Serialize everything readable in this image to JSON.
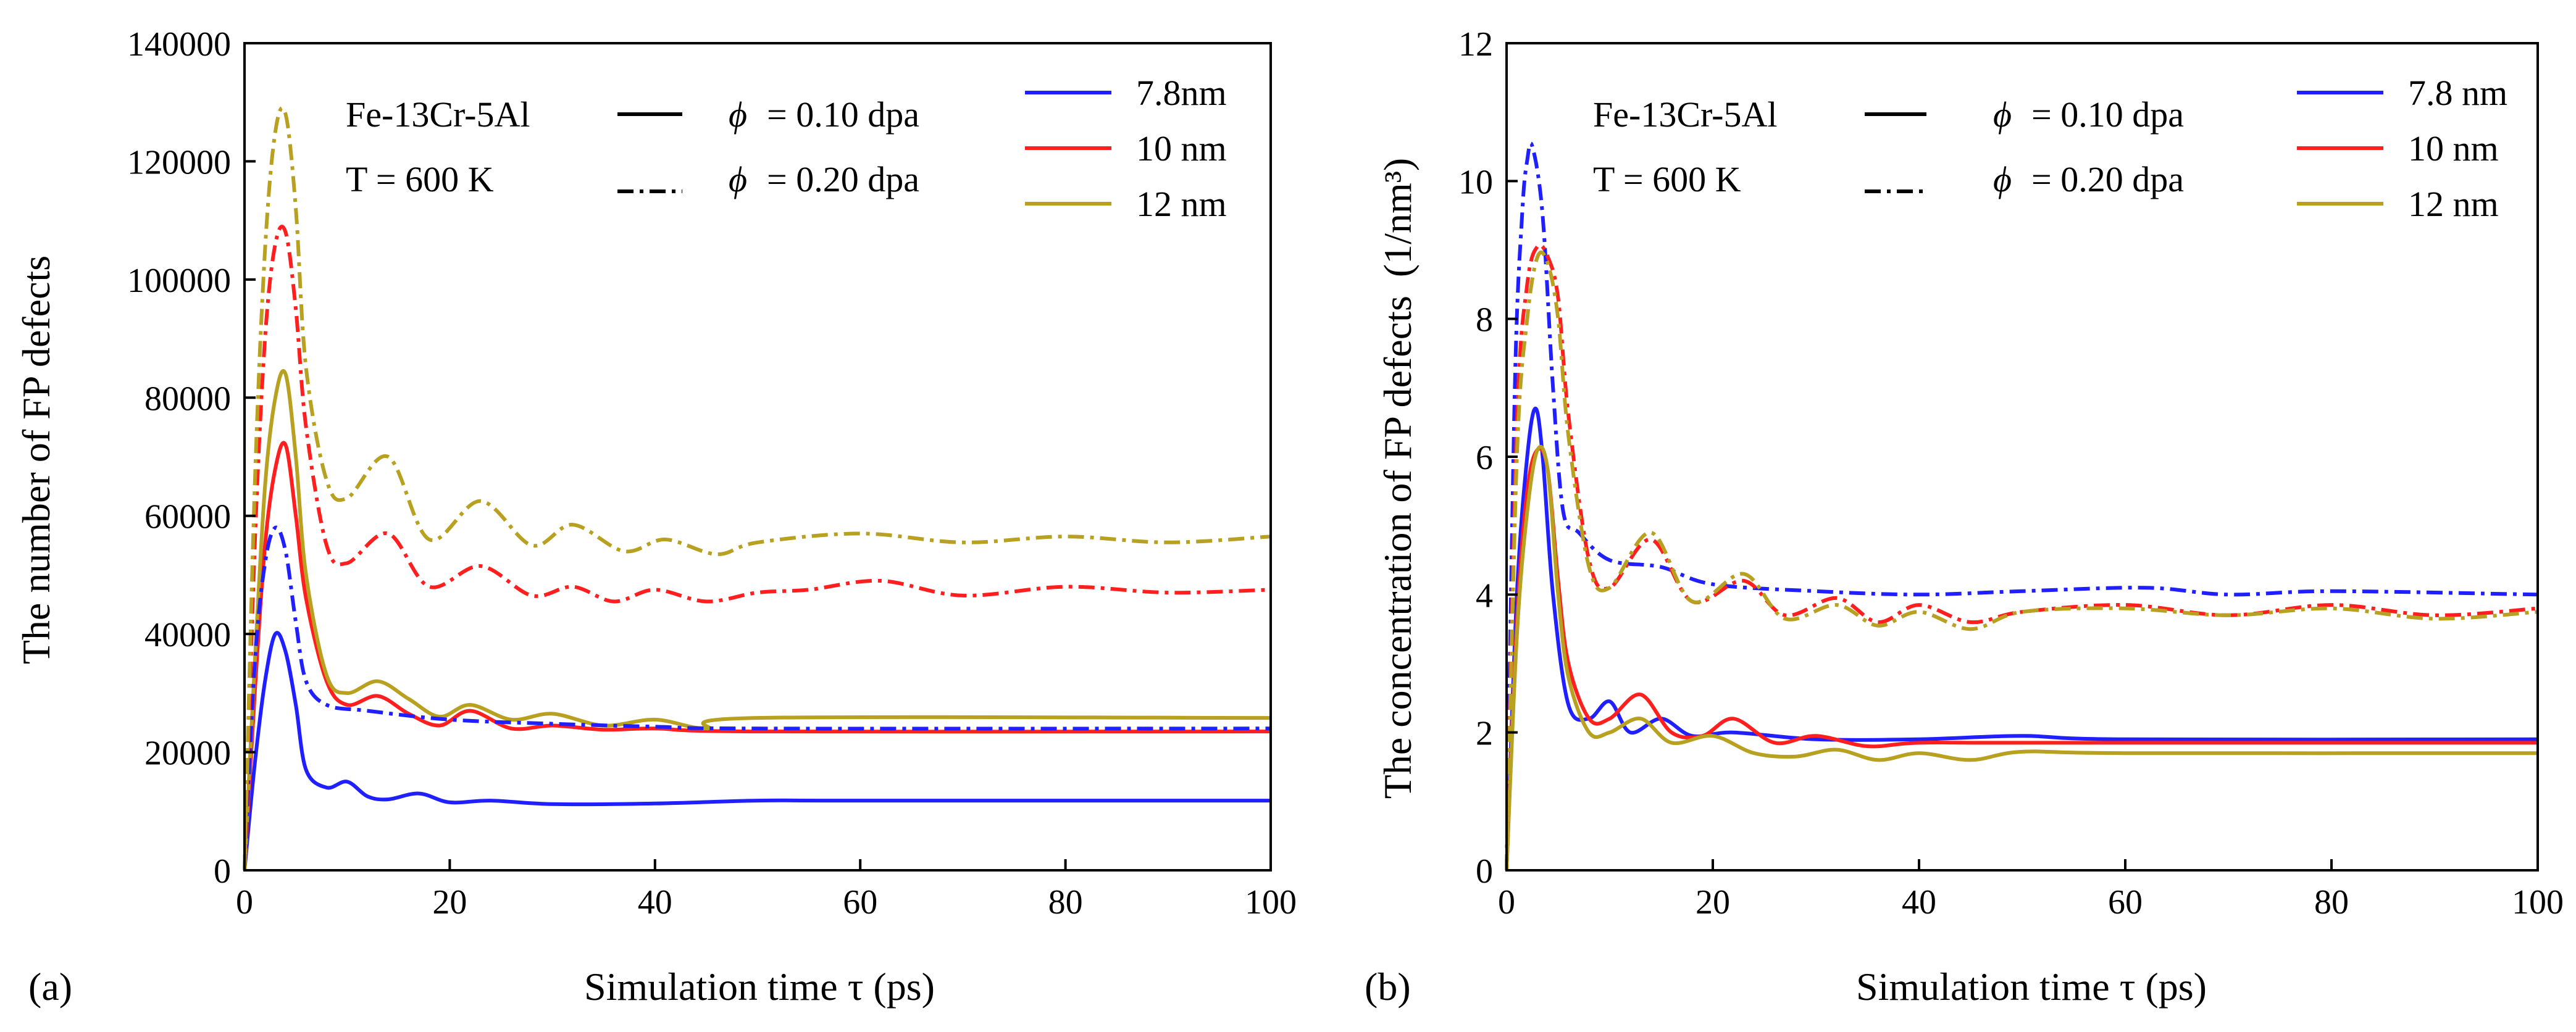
{
  "colors": {
    "blue": "#1f1fff",
    "red": "#ff1f1f",
    "olive": "#b8a020",
    "black": "#000000"
  },
  "chart_data": [
    {
      "type": "line",
      "panel_label": "(a)",
      "xlabel": "Simulation time τ (ps)",
      "ylabel": "The number of FP defects",
      "xlim": [
        0,
        100
      ],
      "ylim": [
        0,
        140000
      ],
      "xticks": [
        0,
        20,
        40,
        60,
        80,
        100
      ],
      "yticks": [
        0,
        20000,
        40000,
        60000,
        80000,
        100000,
        120000,
        140000
      ],
      "ytick_labels": [
        "0",
        "20000",
        "40000",
        "60000",
        "80000",
        "100000",
        "120000",
        "140000"
      ],
      "legend": {
        "material": "Fe-13Cr-5Al",
        "temperature": "T  =   600 K",
        "phi_symbol": "ϕ",
        "dose_solid": "=  0.10 dpa",
        "dose_dashdot": "=  0.20 dpa",
        "sizes": [
          "7.8nm",
          "10 nm",
          "12 nm"
        ]
      },
      "series": [
        {
          "name": "7.8nm 0.10 dpa",
          "color": "blue",
          "style": "solid",
          "points": [
            [
              0,
              0
            ],
            [
              1,
              18000
            ],
            [
              2,
              32000
            ],
            [
              3,
              40000
            ],
            [
              4,
              37000
            ],
            [
              5,
              28000
            ],
            [
              6,
              17000
            ],
            [
              8,
              14000
            ],
            [
              10,
              15000
            ],
            [
              12,
              12500
            ],
            [
              14,
              12000
            ],
            [
              17,
              13000
            ],
            [
              20,
              11500
            ],
            [
              24,
              11800
            ],
            [
              30,
              11200
            ],
            [
              40,
              11300
            ],
            [
              50,
              11800
            ],
            [
              60,
              11800
            ],
            [
              100,
              11800
            ]
          ]
        },
        {
          "name": "10 nm 0.10 dpa",
          "color": "red",
          "style": "solid",
          "points": [
            [
              0,
              0
            ],
            [
              1,
              30000
            ],
            [
              2,
              55000
            ],
            [
              3,
              68000
            ],
            [
              4,
              72000
            ],
            [
              5,
              60000
            ],
            [
              6,
              46000
            ],
            [
              8,
              32000
            ],
            [
              10,
              28000
            ],
            [
              13,
              29500
            ],
            [
              16,
              26500
            ],
            [
              19,
              24500
            ],
            [
              22,
              27000
            ],
            [
              26,
              24000
            ],
            [
              30,
              24500
            ],
            [
              35,
              23800
            ],
            [
              40,
              24000
            ],
            [
              50,
              23500
            ],
            [
              100,
              23500
            ]
          ]
        },
        {
          "name": "12 nm 0.10 dpa",
          "color": "olive",
          "style": "solid",
          "points": [
            [
              0,
              0
            ],
            [
              1,
              35000
            ],
            [
              2,
              65000
            ],
            [
              3,
              80000
            ],
            [
              4,
              84000
            ],
            [
              5,
              70000
            ],
            [
              6,
              50000
            ],
            [
              8,
              33000
            ],
            [
              10,
              30000
            ],
            [
              13,
              32000
            ],
            [
              16,
              29000
            ],
            [
              19,
              26000
            ],
            [
              22,
              28000
            ],
            [
              26,
              25500
            ],
            [
              30,
              26500
            ],
            [
              35,
              24500
            ],
            [
              40,
              25500
            ],
            [
              45,
              24000
            ],
            [
              50,
              25800
            ],
            [
              100,
              25800
            ]
          ]
        },
        {
          "name": "7.8nm 0.20 dpa",
          "color": "blue",
          "style": "dashdot",
          "points": [
            [
              0,
              0
            ],
            [
              1,
              35000
            ],
            [
              2,
              52000
            ],
            [
              3,
              58000
            ],
            [
              4,
              54000
            ],
            [
              5,
              42000
            ],
            [
              6,
              32000
            ],
            [
              8,
              28000
            ],
            [
              12,
              27000
            ],
            [
              20,
              25500
            ],
            [
              30,
              24800
            ],
            [
              40,
              24300
            ],
            [
              50,
              24000
            ],
            [
              100,
              24000
            ]
          ]
        },
        {
          "name": "10 nm 0.20 dpa",
          "color": "red",
          "style": "dashdot",
          "points": [
            [
              0,
              0
            ],
            [
              1,
              55000
            ],
            [
              2,
              90000
            ],
            [
              3,
              106000
            ],
            [
              4,
              108000
            ],
            [
              5,
              95000
            ],
            [
              6,
              75000
            ],
            [
              8,
              55000
            ],
            [
              10,
              52000
            ],
            [
              14,
              57000
            ],
            [
              18,
              48000
            ],
            [
              23,
              51500
            ],
            [
              28,
              46500
            ],
            [
              32,
              48000
            ],
            [
              36,
              45500
            ],
            [
              40,
              47500
            ],
            [
              45,
              45500
            ],
            [
              50,
              47000
            ],
            [
              55,
              47500
            ],
            [
              62,
              49000
            ],
            [
              70,
              46500
            ],
            [
              80,
              48000
            ],
            [
              90,
              47000
            ],
            [
              100,
              47500
            ]
          ]
        },
        {
          "name": "12 nm 0.20 dpa",
          "color": "olive",
          "style": "dashdot",
          "points": [
            [
              0,
              0
            ],
            [
              1,
              65000
            ],
            [
              2,
              105000
            ],
            [
              3,
              125000
            ],
            [
              4,
              128000
            ],
            [
              5,
              112000
            ],
            [
              6,
              85000
            ],
            [
              8,
              66000
            ],
            [
              10,
              63000
            ],
            [
              14,
              70000
            ],
            [
              18,
              56000
            ],
            [
              23,
              62500
            ],
            [
              28,
              55000
            ],
            [
              32,
              58500
            ],
            [
              37,
              54000
            ],
            [
              41,
              56000
            ],
            [
              46,
              53500
            ],
            [
              50,
              55500
            ],
            [
              60,
              57000
            ],
            [
              70,
              55500
            ],
            [
              80,
              56500
            ],
            [
              90,
              55500
            ],
            [
              100,
              56500
            ]
          ]
        }
      ]
    },
    {
      "type": "line",
      "panel_label": "(b)",
      "xlabel": "Simulation time τ (ps)",
      "ylabel": "The concentration of FP defects",
      "ylabel_unit": "(1/nm³)",
      "xlim": [
        0,
        100
      ],
      "ylim": [
        0,
        12
      ],
      "xticks": [
        0,
        20,
        40,
        60,
        80,
        100
      ],
      "yticks": [
        0,
        2,
        4,
        6,
        8,
        10,
        12
      ],
      "ytick_labels": [
        "0",
        "2",
        "4",
        "6",
        "8",
        "10",
        "12"
      ],
      "legend": {
        "material": "Fe-13Cr-5Al",
        "temperature": "T  =   600 K",
        "phi_symbol": "ϕ",
        "dose_solid": "=  0.10 dpa",
        "dose_dashdot": "=  0.20 dpa",
        "sizes": [
          "7.8 nm",
          "10 nm",
          "12 nm"
        ]
      },
      "series": [
        {
          "name": "7.8 nm 0.10 dpa",
          "color": "blue",
          "style": "solid",
          "points": [
            [
              0,
              0
            ],
            [
              1,
              4.0
            ],
            [
              2,
              6.0
            ],
            [
              2.8,
              6.7
            ],
            [
              3.5,
              6.0
            ],
            [
              4.5,
              4.0
            ],
            [
              6,
              2.4
            ],
            [
              8,
              2.2
            ],
            [
              10,
              2.45
            ],
            [
              12,
              2.0
            ],
            [
              15,
              2.2
            ],
            [
              18,
              1.95
            ],
            [
              22,
              2.0
            ],
            [
              30,
              1.9
            ],
            [
              40,
              1.9
            ],
            [
              50,
              1.95
            ],
            [
              60,
              1.9
            ],
            [
              100,
              1.9
            ]
          ]
        },
        {
          "name": "10 nm 0.10 dpa",
          "color": "red",
          "style": "solid",
          "points": [
            [
              0,
              0
            ],
            [
              1,
              3.6
            ],
            [
              2,
              5.5
            ],
            [
              3,
              6.1
            ],
            [
              4,
              5.8
            ],
            [
              5,
              4.2
            ],
            [
              6,
              3.0
            ],
            [
              8,
              2.2
            ],
            [
              10,
              2.2
            ],
            [
              13,
              2.55
            ],
            [
              16,
              2.0
            ],
            [
              19,
              1.95
            ],
            [
              22,
              2.2
            ],
            [
              26,
              1.85
            ],
            [
              30,
              1.95
            ],
            [
              35,
              1.8
            ],
            [
              40,
              1.85
            ],
            [
              50,
              1.85
            ],
            [
              100,
              1.85
            ]
          ]
        },
        {
          "name": "12 nm 0.10 dpa",
          "color": "olive",
          "style": "solid",
          "points": [
            [
              0,
              0
            ],
            [
              1,
              3.4
            ],
            [
              2,
              5.2
            ],
            [
              3,
              6.1
            ],
            [
              4,
              5.8
            ],
            [
              5,
              4.0
            ],
            [
              6,
              2.8
            ],
            [
              8,
              2.0
            ],
            [
              10,
              2.0
            ],
            [
              13,
              2.2
            ],
            [
              16,
              1.85
            ],
            [
              20,
              1.95
            ],
            [
              24,
              1.7
            ],
            [
              28,
              1.65
            ],
            [
              32,
              1.75
            ],
            [
              36,
              1.6
            ],
            [
              40,
              1.7
            ],
            [
              45,
              1.6
            ],
            [
              50,
              1.72
            ],
            [
              60,
              1.7
            ],
            [
              100,
              1.7
            ]
          ]
        },
        {
          "name": "7.8 nm 0.20 dpa",
          "color": "blue",
          "style": "dashdot",
          "points": [
            [
              0,
              0
            ],
            [
              0.8,
              7.0
            ],
            [
              1.5,
              9.5
            ],
            [
              2,
              10.3
            ],
            [
              2.5,
              10.5
            ],
            [
              3.5,
              9.5
            ],
            [
              4.5,
              7.0
            ],
            [
              5.5,
              5.2
            ],
            [
              7,
              4.9
            ],
            [
              10,
              4.5
            ],
            [
              15,
              4.4
            ],
            [
              20,
              4.15
            ],
            [
              30,
              4.05
            ],
            [
              40,
              4.0
            ],
            [
              50,
              4.05
            ],
            [
              62,
              4.1
            ],
            [
              70,
              4.0
            ],
            [
              80,
              4.05
            ],
            [
              100,
              4.0
            ]
          ]
        },
        {
          "name": "10 nm 0.20 dpa",
          "color": "red",
          "style": "dashdot",
          "points": [
            [
              0,
              0
            ],
            [
              1,
              6.5
            ],
            [
              2,
              8.5
            ],
            [
              3,
              9.05
            ],
            [
              4,
              8.9
            ],
            [
              5,
              8.3
            ],
            [
              6,
              6.6
            ],
            [
              8,
              4.5
            ],
            [
              10,
              4.1
            ],
            [
              14,
              4.8
            ],
            [
              18,
              3.9
            ],
            [
              23,
              4.2
            ],
            [
              27,
              3.7
            ],
            [
              32,
              3.95
            ],
            [
              36,
              3.6
            ],
            [
              40,
              3.85
            ],
            [
              45,
              3.6
            ],
            [
              50,
              3.75
            ],
            [
              60,
              3.85
            ],
            [
              70,
              3.7
            ],
            [
              80,
              3.85
            ],
            [
              90,
              3.7
            ],
            [
              100,
              3.8
            ]
          ]
        },
        {
          "name": "12 nm 0.20 dpa",
          "color": "olive",
          "style": "dashdot",
          "points": [
            [
              0,
              0
            ],
            [
              1,
              6.0
            ],
            [
              2,
              8.0
            ],
            [
              3,
              8.9
            ],
            [
              4,
              8.8
            ],
            [
              5,
              8.0
            ],
            [
              6,
              6.3
            ],
            [
              8,
              4.4
            ],
            [
              10,
              4.1
            ],
            [
              14,
              4.9
            ],
            [
              18,
              3.9
            ],
            [
              23,
              4.3
            ],
            [
              27,
              3.65
            ],
            [
              32,
              3.85
            ],
            [
              36,
              3.55
            ],
            [
              40,
              3.75
            ],
            [
              45,
              3.5
            ],
            [
              50,
              3.75
            ],
            [
              60,
              3.8
            ],
            [
              70,
              3.7
            ],
            [
              80,
              3.8
            ],
            [
              90,
              3.65
            ],
            [
              100,
              3.75
            ]
          ]
        }
      ]
    }
  ]
}
